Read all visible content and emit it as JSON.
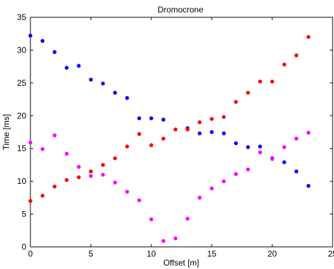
{
  "chart_data": {
    "type": "scatter",
    "title": "Dromocrone",
    "xlabel": "Offset [m]",
    "ylabel": "Time [ms]",
    "xlim": [
      0,
      25
    ],
    "ylim": [
      0,
      35
    ],
    "xticks": [
      0,
      5,
      10,
      15,
      20,
      25
    ],
    "yticks": [
      0,
      5,
      10,
      15,
      20,
      25,
      30,
      35
    ],
    "grid": false,
    "series": [
      {
        "color": "#0000ff",
        "x": [
          0,
          1,
          2,
          3,
          4,
          5,
          6,
          7,
          8,
          9,
          10,
          11,
          13,
          14,
          15,
          16,
          17,
          18,
          19,
          20,
          21,
          22,
          23
        ],
        "y": [
          32.2,
          31.4,
          29.7,
          27.3,
          27.6,
          25.5,
          24.9,
          23.5,
          22.7,
          19.6,
          19.6,
          19.4,
          18.1,
          17.3,
          17.5,
          17.3,
          15.8,
          15.2,
          15.3,
          13.5,
          12.9,
          11.5,
          9.3
        ]
      },
      {
        "color": "#ff0000",
        "x": [
          0,
          1,
          2,
          3,
          4,
          5,
          6,
          7,
          8,
          9,
          10,
          11,
          12,
          13,
          14,
          15,
          16,
          17,
          18,
          19,
          20,
          21,
          22,
          23
        ],
        "y": [
          7.0,
          7.8,
          9.2,
          10.2,
          10.6,
          11.5,
          12.5,
          13.5,
          15.3,
          17.2,
          15.5,
          16.5,
          17.9,
          17.9,
          19.0,
          19.5,
          19.8,
          22.1,
          23.5,
          25.2,
          25.2,
          27.8,
          29.2,
          32.0
        ]
      },
      {
        "color": "#ff00ff",
        "x": [
          0,
          1,
          2,
          3,
          4,
          5,
          6,
          7,
          8,
          9,
          10,
          11,
          12,
          13,
          14,
          15,
          16,
          17,
          18,
          19,
          20,
          21,
          22,
          23
        ],
        "y": [
          15.9,
          14.9,
          17.0,
          14.2,
          12.2,
          10.8,
          11.0,
          9.8,
          8.4,
          7.1,
          4.2,
          0.9,
          1.3,
          4.3,
          7.5,
          8.9,
          10.0,
          11.1,
          11.8,
          14.4,
          13.4,
          15.2,
          16.5,
          17.4
        ]
      }
    ]
  }
}
